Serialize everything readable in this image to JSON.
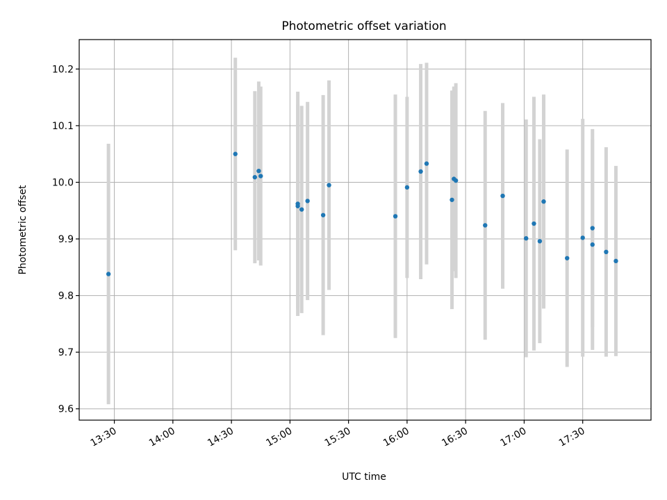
{
  "chart_data": {
    "type": "scatter",
    "title": "Photometric offset variation",
    "xlabel": "UTC time",
    "ylabel": "Photometric offset",
    "grid": true,
    "xlim": [
      "13:12",
      "18:05"
    ],
    "ylim": [
      9.58,
      10.252
    ],
    "xticks": [
      "13:30",
      "14:00",
      "14:30",
      "15:00",
      "15:30",
      "16:00",
      "16:30",
      "17:00",
      "17:30"
    ],
    "yticks": [
      "9.6",
      "9.7",
      "9.8",
      "9.9",
      "10.0",
      "10.1",
      "10.2"
    ],
    "colors": {
      "point": "#1f77b4",
      "errorbar": "#d3d3d3"
    },
    "points": [
      {
        "x": "13:27",
        "y": 9.838,
        "err": 0.23
      },
      {
        "x": "14:32",
        "y": 10.05,
        "err": 0.17
      },
      {
        "x": "14:42",
        "y": 10.009,
        "err": 0.152
      },
      {
        "x": "14:44",
        "y": 10.02,
        "err": 0.158
      },
      {
        "x": "14:45",
        "y": 10.011,
        "err": 0.158
      },
      {
        "x": "15:04",
        "y": 9.962,
        "err": 0.198
      },
      {
        "x": "15:04",
        "y": 9.958,
        "err": 0.18
      },
      {
        "x": "15:06",
        "y": 9.952,
        "err": 0.183
      },
      {
        "x": "15:09",
        "y": 9.967,
        "err": 0.175
      },
      {
        "x": "15:17",
        "y": 9.942,
        "err": 0.212
      },
      {
        "x": "15:20",
        "y": 9.995,
        "err": 0.185
      },
      {
        "x": "15:54",
        "y": 9.94,
        "err": 0.215
      },
      {
        "x": "16:00",
        "y": 9.991,
        "err": 0.16
      },
      {
        "x": "16:07",
        "y": 10.019,
        "err": 0.19
      },
      {
        "x": "16:10",
        "y": 10.033,
        "err": 0.178
      },
      {
        "x": "16:23",
        "y": 9.969,
        "err": 0.193
      },
      {
        "x": "16:24",
        "y": 10.006,
        "err": 0.163
      },
      {
        "x": "16:25",
        "y": 10.003,
        "err": 0.172
      },
      {
        "x": "16:40",
        "y": 9.924,
        "err": 0.202
      },
      {
        "x": "16:49",
        "y": 9.976,
        "err": 0.164
      },
      {
        "x": "17:01",
        "y": 9.901,
        "err": 0.21
      },
      {
        "x": "17:05",
        "y": 9.927,
        "err": 0.224
      },
      {
        "x": "17:08",
        "y": 9.896,
        "err": 0.18
      },
      {
        "x": "17:10",
        "y": 9.966,
        "err": 0.189
      },
      {
        "x": "17:22",
        "y": 9.866,
        "err": 0.192
      },
      {
        "x": "17:30",
        "y": 9.902,
        "err": 0.21
      },
      {
        "x": "17:35",
        "y": 9.919,
        "err": 0.175
      },
      {
        "x": "17:35",
        "y": 9.89,
        "err": 0.186
      },
      {
        "x": "17:42",
        "y": 9.877,
        "err": 0.185
      },
      {
        "x": "17:47",
        "y": 9.861,
        "err": 0.168
      }
    ]
  }
}
